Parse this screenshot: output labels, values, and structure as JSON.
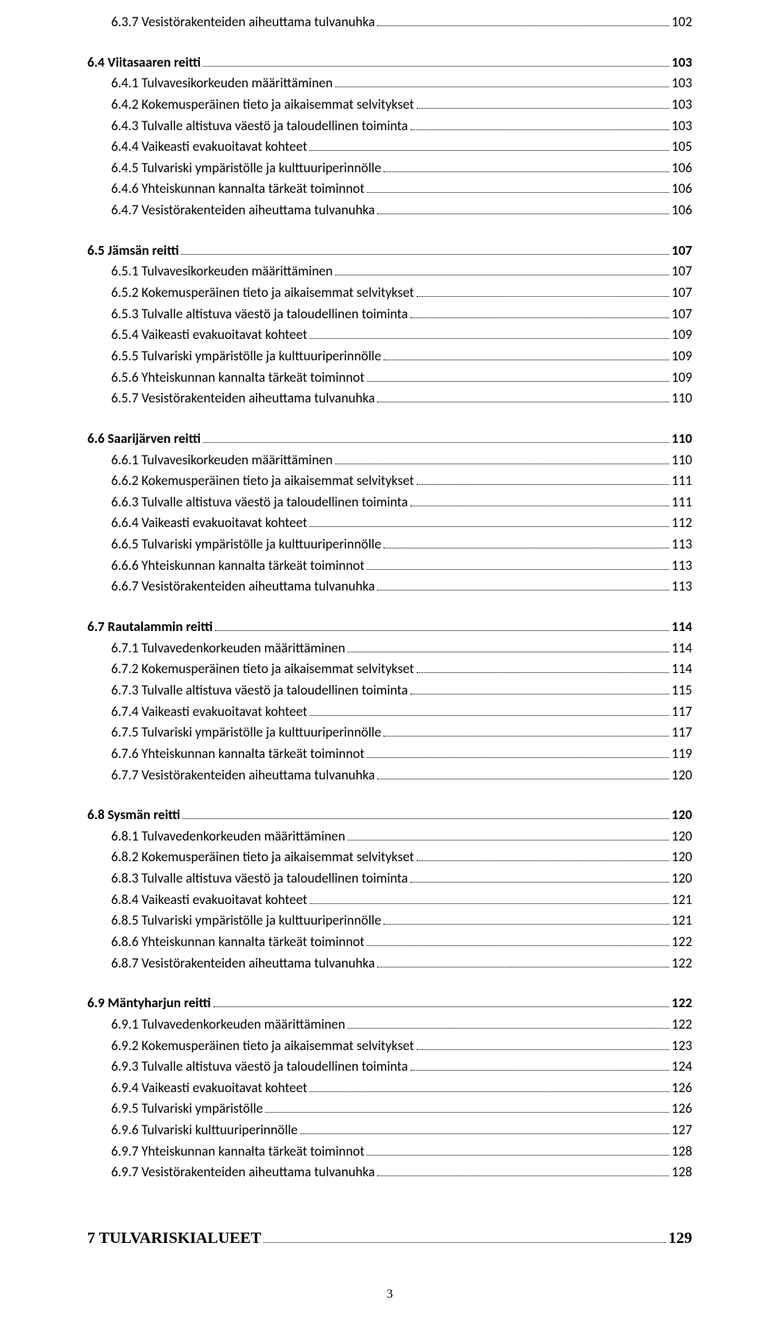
{
  "rows": [
    {
      "type": "entry",
      "level": 2,
      "bold": false,
      "label": "6.3.7 Vesistörakenteiden aiheuttama tulvanuhka",
      "page": "102"
    },
    {
      "type": "gap",
      "size": "m"
    },
    {
      "type": "entry",
      "level": 1,
      "bold": true,
      "label": "6.4 Viitasaaren reitti",
      "page": "103"
    },
    {
      "type": "entry",
      "level": 2,
      "bold": false,
      "label": "6.4.1 Tulvavesikorkeuden määrittäminen",
      "page": "103"
    },
    {
      "type": "entry",
      "level": 2,
      "bold": false,
      "label": "6.4.2 Kokemusperäinen tieto ja aikaisemmat selvitykset",
      "page": "103"
    },
    {
      "type": "entry",
      "level": 2,
      "bold": false,
      "label": "6.4.3 Tulvalle altistuva väestö ja taloudellinen toiminta",
      "page": "103"
    },
    {
      "type": "entry",
      "level": 2,
      "bold": false,
      "label": "6.4.4 Vaikeasti evakuoitavat kohteet",
      "page": "105"
    },
    {
      "type": "entry",
      "level": 2,
      "bold": false,
      "label": "6.4.5 Tulvariski ympäristölle ja kulttuuriperinnölle",
      "page": "106"
    },
    {
      "type": "entry",
      "level": 2,
      "bold": false,
      "label": "6.4.6 Yhteiskunnan kannalta tärkeät toiminnot",
      "page": "106"
    },
    {
      "type": "entry",
      "level": 2,
      "bold": false,
      "label": "6.4.7 Vesistörakenteiden aiheuttama tulvanuhka",
      "page": "106"
    },
    {
      "type": "gap",
      "size": "m"
    },
    {
      "type": "entry",
      "level": 1,
      "bold": true,
      "label": "6.5 Jämsän reitti",
      "page": "107"
    },
    {
      "type": "entry",
      "level": 2,
      "bold": false,
      "label": "6.5.1 Tulvavesikorkeuden määrittäminen",
      "page": "107"
    },
    {
      "type": "entry",
      "level": 2,
      "bold": false,
      "label": "6.5.2 Kokemusperäinen tieto ja aikaisemmat selvitykset",
      "page": "107"
    },
    {
      "type": "entry",
      "level": 2,
      "bold": false,
      "label": "6.5.3 Tulvalle altistuva väestö ja taloudellinen toiminta",
      "page": "107"
    },
    {
      "type": "entry",
      "level": 2,
      "bold": false,
      "label": "6.5.4 Vaikeasti evakuoitavat kohteet",
      "page": "109"
    },
    {
      "type": "entry",
      "level": 2,
      "bold": false,
      "label": "6.5.5 Tulvariski ympäristölle ja kulttuuriperinnölle",
      "page": "109"
    },
    {
      "type": "entry",
      "level": 2,
      "bold": false,
      "label": "6.5.6 Yhteiskunnan kannalta tärkeät toiminnot",
      "page": "109"
    },
    {
      "type": "entry",
      "level": 2,
      "bold": false,
      "label": "6.5.7 Vesistörakenteiden aiheuttama tulvanuhka",
      "page": "110"
    },
    {
      "type": "gap",
      "size": "m"
    },
    {
      "type": "entry",
      "level": 1,
      "bold": true,
      "label": "6.6 Saarijärven reitti",
      "page": "110"
    },
    {
      "type": "entry",
      "level": 2,
      "bold": false,
      "label": "6.6.1 Tulvavesikorkeuden määrittäminen",
      "page": "110"
    },
    {
      "type": "entry",
      "level": 2,
      "bold": false,
      "label": "6.6.2 Kokemusperäinen tieto ja aikaisemmat selvitykset",
      "page": "111"
    },
    {
      "type": "entry",
      "level": 2,
      "bold": false,
      "label": "6.6.3 Tulvalle altistuva väestö ja taloudellinen toiminta",
      "page": "111"
    },
    {
      "type": "entry",
      "level": 2,
      "bold": false,
      "label": "6.6.4 Vaikeasti evakuoitavat kohteet",
      "page": "112"
    },
    {
      "type": "entry",
      "level": 2,
      "bold": false,
      "label": "6.6.5 Tulvariski ympäristölle ja kulttuuriperinnölle",
      "page": "113"
    },
    {
      "type": "entry",
      "level": 2,
      "bold": false,
      "label": "6.6.6 Yhteiskunnan kannalta tärkeät toiminnot",
      "page": "113"
    },
    {
      "type": "entry",
      "level": 2,
      "bold": false,
      "label": "6.6.7 Vesistörakenteiden aiheuttama tulvanuhka",
      "page": "113"
    },
    {
      "type": "gap",
      "size": "m"
    },
    {
      "type": "entry",
      "level": 0,
      "bold": true,
      "label": "6.7 Rautalammin reitti",
      "page": "114"
    },
    {
      "type": "entry",
      "level": 2,
      "bold": false,
      "label": "6.7.1 Tulvavedenkorkeuden määrittäminen",
      "page": "114"
    },
    {
      "type": "entry",
      "level": 2,
      "bold": false,
      "label": "6.7.2 Kokemusperäinen tieto ja aikaisemmat selvitykset",
      "page": "114"
    },
    {
      "type": "entry",
      "level": 2,
      "bold": false,
      "label": "6.7.3 Tulvalle altistuva väestö ja taloudellinen toiminta",
      "page": "115"
    },
    {
      "type": "entry",
      "level": 2,
      "bold": false,
      "label": "6.7.4 Vaikeasti evakuoitavat kohteet",
      "page": "117"
    },
    {
      "type": "entry",
      "level": 2,
      "bold": false,
      "label": "6.7.5 Tulvariski ympäristölle ja kulttuuriperinnölle",
      "page": "117"
    },
    {
      "type": "entry",
      "level": 2,
      "bold": false,
      "label": "6.7.6 Yhteiskunnan kannalta tärkeät toiminnot",
      "page": "119"
    },
    {
      "type": "entry",
      "level": 2,
      "bold": false,
      "label": "6.7.7 Vesistörakenteiden aiheuttama tulvanuhka",
      "page": "120"
    },
    {
      "type": "gap",
      "size": "m"
    },
    {
      "type": "entry",
      "level": 0,
      "bold": true,
      "label": "6.8 Sysmän reitti",
      "page": "120"
    },
    {
      "type": "entry",
      "level": 2,
      "bold": false,
      "label": "6.8.1 Tulvavedenkorkeuden määrittäminen",
      "page": "120"
    },
    {
      "type": "entry",
      "level": 2,
      "bold": false,
      "label": "6.8.2 Kokemusperäinen tieto ja aikaisemmat selvitykset",
      "page": "120"
    },
    {
      "type": "entry",
      "level": 2,
      "bold": false,
      "label": "6.8.3 Tulvalle altistuva väestö ja taloudellinen toiminta",
      "page": "120"
    },
    {
      "type": "entry",
      "level": 2,
      "bold": false,
      "label": "6.8.4 Vaikeasti evakuoitavat kohteet",
      "page": "121"
    },
    {
      "type": "entry",
      "level": 2,
      "bold": false,
      "label": "6.8.5 Tulvariski ympäristölle ja kulttuuriperinnölle",
      "page": "121"
    },
    {
      "type": "entry",
      "level": 2,
      "bold": false,
      "label": "6.8.6 Yhteiskunnan kannalta tärkeät toiminnot",
      "page": "122"
    },
    {
      "type": "entry",
      "level": 2,
      "bold": false,
      "label": "6.8.7 Vesistörakenteiden aiheuttama tulvanuhka",
      "page": "122"
    },
    {
      "type": "gap",
      "size": "m"
    },
    {
      "type": "entry",
      "level": 0,
      "bold": true,
      "label": "6.9 Mäntyharjun reitti",
      "page": "122"
    },
    {
      "type": "entry",
      "level": 2,
      "bold": false,
      "label": "6.9.1 Tulvavedenkorkeuden määrittäminen",
      "page": "122"
    },
    {
      "type": "entry",
      "level": 2,
      "bold": false,
      "label": "6.9.2 Kokemusperäinen tieto ja aikaisemmat selvitykset",
      "page": "123"
    },
    {
      "type": "entry",
      "level": 2,
      "bold": false,
      "label": "6.9.3 Tulvalle altistuva väestö ja taloudellinen toiminta",
      "page": "124"
    },
    {
      "type": "entry",
      "level": 2,
      "bold": false,
      "label": "6.9.4 Vaikeasti evakuoitavat kohteet",
      "page": "126"
    },
    {
      "type": "entry",
      "level": 2,
      "bold": false,
      "label": "6.9.5 Tulvariski ympäristölle",
      "page": "126"
    },
    {
      "type": "entry",
      "level": 2,
      "bold": false,
      "label": "6.9.6 Tulvariski kulttuuriperinnölle",
      "page": "127"
    },
    {
      "type": "entry",
      "level": 2,
      "bold": false,
      "label": "6.9.7 Yhteiskunnan kannalta tärkeät toiminnot",
      "page": "128"
    },
    {
      "type": "entry",
      "level": 2,
      "bold": false,
      "label": "6.9.7 Vesistörakenteiden aiheuttama tulvanuhka",
      "page": "128"
    },
    {
      "type": "gap",
      "size": "l"
    },
    {
      "type": "chapter",
      "label": "7 TULVARISKIALUEET",
      "page": "129"
    }
  ],
  "page_number": "3"
}
